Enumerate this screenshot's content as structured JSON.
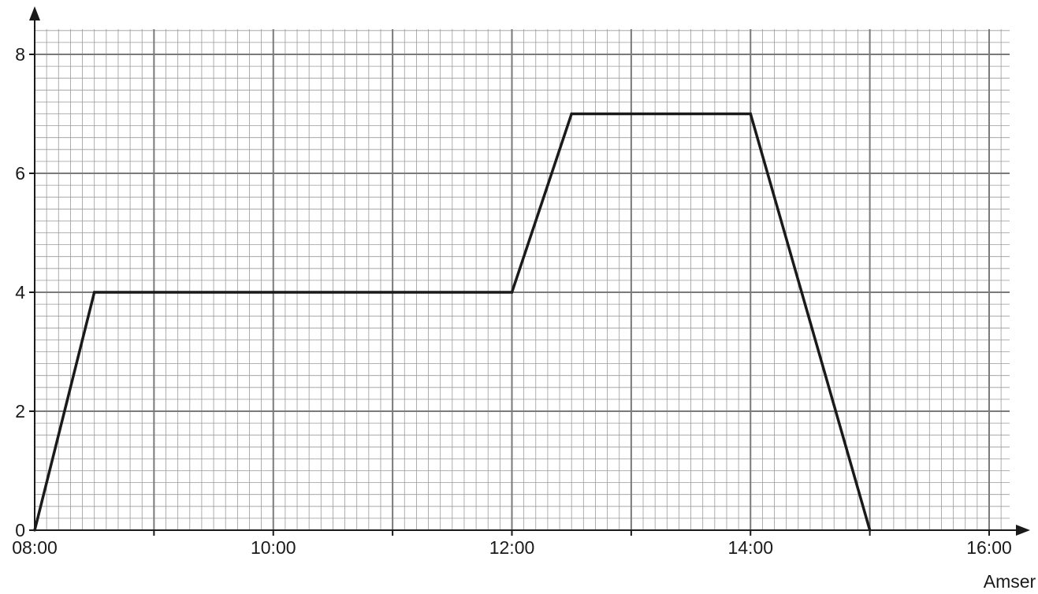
{
  "chart_data": {
    "type": "line",
    "title": "",
    "xlabel": "Amser",
    "ylabel": "",
    "x_tick_labels": [
      "08:00",
      "10:00",
      "12:00",
      "14:00",
      "16:00"
    ],
    "x_tick_values": [
      0,
      120,
      240,
      360,
      480
    ],
    "y_tick_labels": [
      "0",
      "2",
      "4",
      "6",
      "8"
    ],
    "y_tick_values": [
      0,
      2,
      4,
      6,
      8
    ],
    "xlim": [
      "08:00",
      "16:00"
    ],
    "ylim": [
      0,
      8
    ],
    "grid": true,
    "series": [
      {
        "x": [
          "08:00",
          "08:30",
          "12:00",
          "12:30",
          "14:00",
          "15:00"
        ],
        "values": [
          0,
          4,
          4,
          7,
          7,
          0
        ]
      }
    ]
  }
}
